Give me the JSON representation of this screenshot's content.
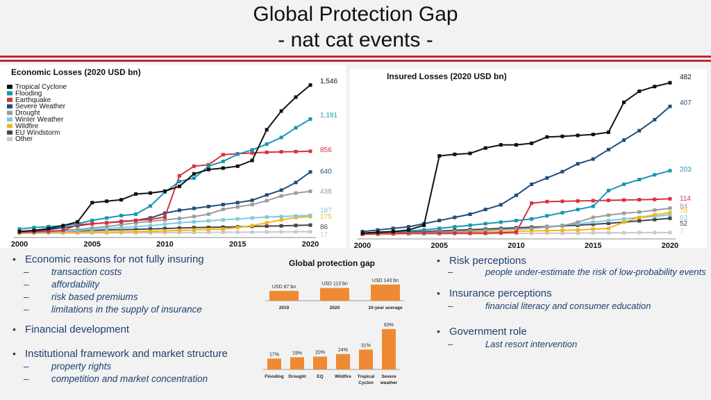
{
  "header": {
    "title_line1": "Global Protection Gap",
    "title_line2": "- nat cat events -"
  },
  "colors": {
    "accent": "#c0262d",
    "text_blue": "#1c3f6e",
    "bar_orange": "#ef8a34"
  },
  "chart_data": [
    {
      "type": "line",
      "title": "Economic Losses (2020 USD bn)",
      "x": [
        2000,
        2001,
        2002,
        2003,
        2004,
        2005,
        2006,
        2007,
        2008,
        2009,
        2010,
        2011,
        2012,
        2013,
        2014,
        2015,
        2016,
        2017,
        2018,
        2019,
        2020
      ],
      "xticks": [
        2000,
        2005,
        2010,
        2015,
        2020
      ],
      "xlim": [
        2000,
        2020
      ],
      "ylim": [
        0,
        1600
      ],
      "legend_position": "top-left",
      "series": [
        {
          "name": "Tropical Cyclone",
          "color": "#111111",
          "end_label": "1,546",
          "values": [
            20,
            30,
            50,
            80,
            120,
            320,
            335,
            350,
            410,
            420,
            440,
            490,
            620,
            665,
            680,
            700,
            760,
            1080,
            1275,
            1420,
            1546
          ]
        },
        {
          "name": "Flooding",
          "color": "#1996b0",
          "end_label": "1,191",
          "values": [
            45,
            60,
            70,
            80,
            100,
            135,
            160,
            185,
            200,
            285,
            430,
            540,
            575,
            700,
            750,
            825,
            870,
            930,
            1000,
            1100,
            1191
          ]
        },
        {
          "name": "Earthquake",
          "color": "#d8313b",
          "end_label": "856",
          "values": [
            10,
            15,
            20,
            30,
            90,
            100,
            110,
            120,
            135,
            145,
            170,
            600,
            700,
            715,
            820,
            830,
            838,
            845,
            850,
            852,
            856
          ]
        },
        {
          "name": "Severe Weather",
          "color": "#1f4e79",
          "end_label": "640",
          "values": [
            20,
            25,
            40,
            60,
            80,
            100,
            110,
            125,
            135,
            160,
            210,
            240,
            260,
            280,
            300,
            320,
            345,
            400,
            450,
            530,
            640
          ]
        },
        {
          "name": "Drought",
          "color": "#9b9b9b",
          "end_label": "438",
          "values": [
            15,
            20,
            25,
            30,
            40,
            55,
            70,
            90,
            110,
            125,
            140,
            155,
            175,
            200,
            250,
            275,
            300,
            340,
            390,
            420,
            438
          ]
        },
        {
          "name": "Winter Weather",
          "color": "#7ecbe0",
          "end_label": "187",
          "values": [
            5,
            10,
            15,
            20,
            30,
            40,
            50,
            60,
            70,
            80,
            95,
            110,
            120,
            130,
            140,
            150,
            160,
            170,
            175,
            182,
            187
          ]
        },
        {
          "name": "Wildfire",
          "color": "#f2b51d",
          "end_label": "175",
          "values": [
            2,
            4,
            6,
            8,
            10,
            12,
            14,
            16,
            18,
            20,
            25,
            30,
            35,
            40,
            45,
            60,
            80,
            110,
            140,
            165,
            175
          ]
        },
        {
          "name": "EU Windstorm",
          "color": "#444444",
          "end_label": "86",
          "values": [
            5,
            10,
            15,
            20,
            25,
            30,
            35,
            38,
            42,
            45,
            50,
            55,
            60,
            62,
            65,
            68,
            72,
            75,
            78,
            82,
            86
          ]
        },
        {
          "name": "Other",
          "color": "#c8c8c8",
          "end_label": "17",
          "values": [
            1,
            2,
            2,
            3,
            3,
            4,
            5,
            5,
            6,
            6,
            7,
            8,
            9,
            10,
            11,
            12,
            13,
            14,
            15,
            16,
            17
          ]
        }
      ]
    },
    {
      "type": "line",
      "title": "Insured Losses (2020 USD bn)",
      "x": [
        2000,
        2001,
        2002,
        2003,
        2004,
        2005,
        2006,
        2007,
        2008,
        2009,
        2010,
        2011,
        2012,
        2013,
        2014,
        2015,
        2016,
        2017,
        2018,
        2019,
        2020
      ],
      "xticks": [
        2000,
        2005,
        2010,
        2015,
        2020
      ],
      "xlim": [
        2000,
        2020
      ],
      "ylim": [
        0,
        500
      ],
      "series": [
        {
          "name": "Tropical Cyclone",
          "color": "#111111",
          "end_label": "482",
          "values": [
            5,
            8,
            10,
            15,
            30,
            250,
            255,
            258,
            275,
            285,
            285,
            290,
            310,
            312,
            315,
            318,
            325,
            420,
            455,
            470,
            482
          ]
        },
        {
          "name": "Severe Weather",
          "color": "#1f4e79",
          "end_label": "407",
          "values": [
            10,
            15,
            20,
            25,
            35,
            45,
            55,
            65,
            80,
            95,
            125,
            160,
            180,
            200,
            225,
            240,
            270,
            300,
            330,
            365,
            407
          ]
        },
        {
          "name": "Flooding",
          "color": "#1996b0",
          "end_label": "203",
          "values": [
            5,
            8,
            10,
            12,
            15,
            20,
            25,
            30,
            35,
            40,
            45,
            50,
            60,
            70,
            80,
            90,
            140,
            160,
            175,
            190,
            203
          ]
        },
        {
          "name": "Earthquake",
          "color": "#d8313b",
          "end_label": "114",
          "values": [
            2,
            3,
            4,
            5,
            5,
            5,
            5,
            5,
            5,
            6,
            8,
            100,
            105,
            106,
            107,
            108,
            109,
            110,
            111,
            112,
            114
          ]
        },
        {
          "name": "Drought",
          "color": "#9b9b9b",
          "end_label": "84",
          "values": [
            3,
            4,
            5,
            6,
            7,
            8,
            10,
            12,
            14,
            16,
            18,
            20,
            24,
            28,
            40,
            55,
            62,
            68,
            72,
            78,
            84
          ]
        },
        {
          "name": "Wildfire",
          "color": "#f2b51d",
          "end_label": "70",
          "values": [
            1,
            2,
            3,
            4,
            5,
            6,
            7,
            8,
            9,
            10,
            11,
            12,
            13,
            14,
            15,
            18,
            20,
            40,
            55,
            63,
            70
          ]
        },
        {
          "name": "Winter Weather",
          "color": "#7ecbe0",
          "end_label": "63",
          "values": [
            2,
            3,
            4,
            5,
            6,
            8,
            10,
            12,
            14,
            16,
            18,
            20,
            25,
            30,
            35,
            40,
            45,
            50,
            55,
            58,
            63
          ]
        },
        {
          "name": "EU Windstorm",
          "color": "#444444",
          "end_label": "52",
          "values": [
            2,
            4,
            6,
            8,
            10,
            12,
            14,
            16,
            18,
            20,
            22,
            24,
            26,
            28,
            30,
            33,
            36,
            40,
            44,
            48,
            52
          ]
        },
        {
          "name": "Other",
          "color": "#c8c8c8",
          "end_label": "7",
          "values": [
            1,
            1,
            1,
            2,
            2,
            2,
            3,
            3,
            3,
            4,
            4,
            4,
            5,
            5,
            5,
            6,
            6,
            6,
            7,
            7,
            7
          ]
        }
      ]
    },
    {
      "type": "bar",
      "title": "Global protection gap",
      "categories": [
        "2019",
        "2020",
        "10-year average"
      ],
      "values": [
        87,
        113,
        143
      ],
      "data_labels": [
        "USD 87 bn",
        "USD 113 bn",
        "USD 143 bn"
      ],
      "ylim": [
        0,
        160
      ]
    },
    {
      "type": "bar",
      "title": "",
      "categories": [
        "Flooding",
        "Drought",
        "EQ",
        "Wildfire",
        "Tropical Cyclon",
        "Severe weather"
      ],
      "values": [
        17,
        19,
        20,
        24,
        31,
        63
      ],
      "data_labels": [
        "17%",
        "19%",
        "20%",
        "24%",
        "31%",
        "63%"
      ],
      "ylim": [
        0,
        65
      ]
    }
  ],
  "left_points": {
    "economic": {
      "title": "Economic reasons for not fully insuring",
      "subs": [
        "transaction costs",
        "affordability",
        "risk based premiums",
        "limitations in the supply of insurance"
      ]
    },
    "financial": {
      "title": "Financial development"
    },
    "institutional": {
      "title": "Institutional framework and market structure",
      "subs": [
        "property rights",
        "competition and market concentration"
      ]
    }
  },
  "right_points": {
    "risk": {
      "title": "Risk perceptions",
      "subs": [
        "people under-estimate the risk of low-probability events"
      ]
    },
    "insurance": {
      "title": "Insurance perceptions",
      "subs": [
        "financial literacy and consumer education"
      ]
    },
    "government": {
      "title": "Government role",
      "subs": [
        "Last resort intervention"
      ]
    }
  }
}
